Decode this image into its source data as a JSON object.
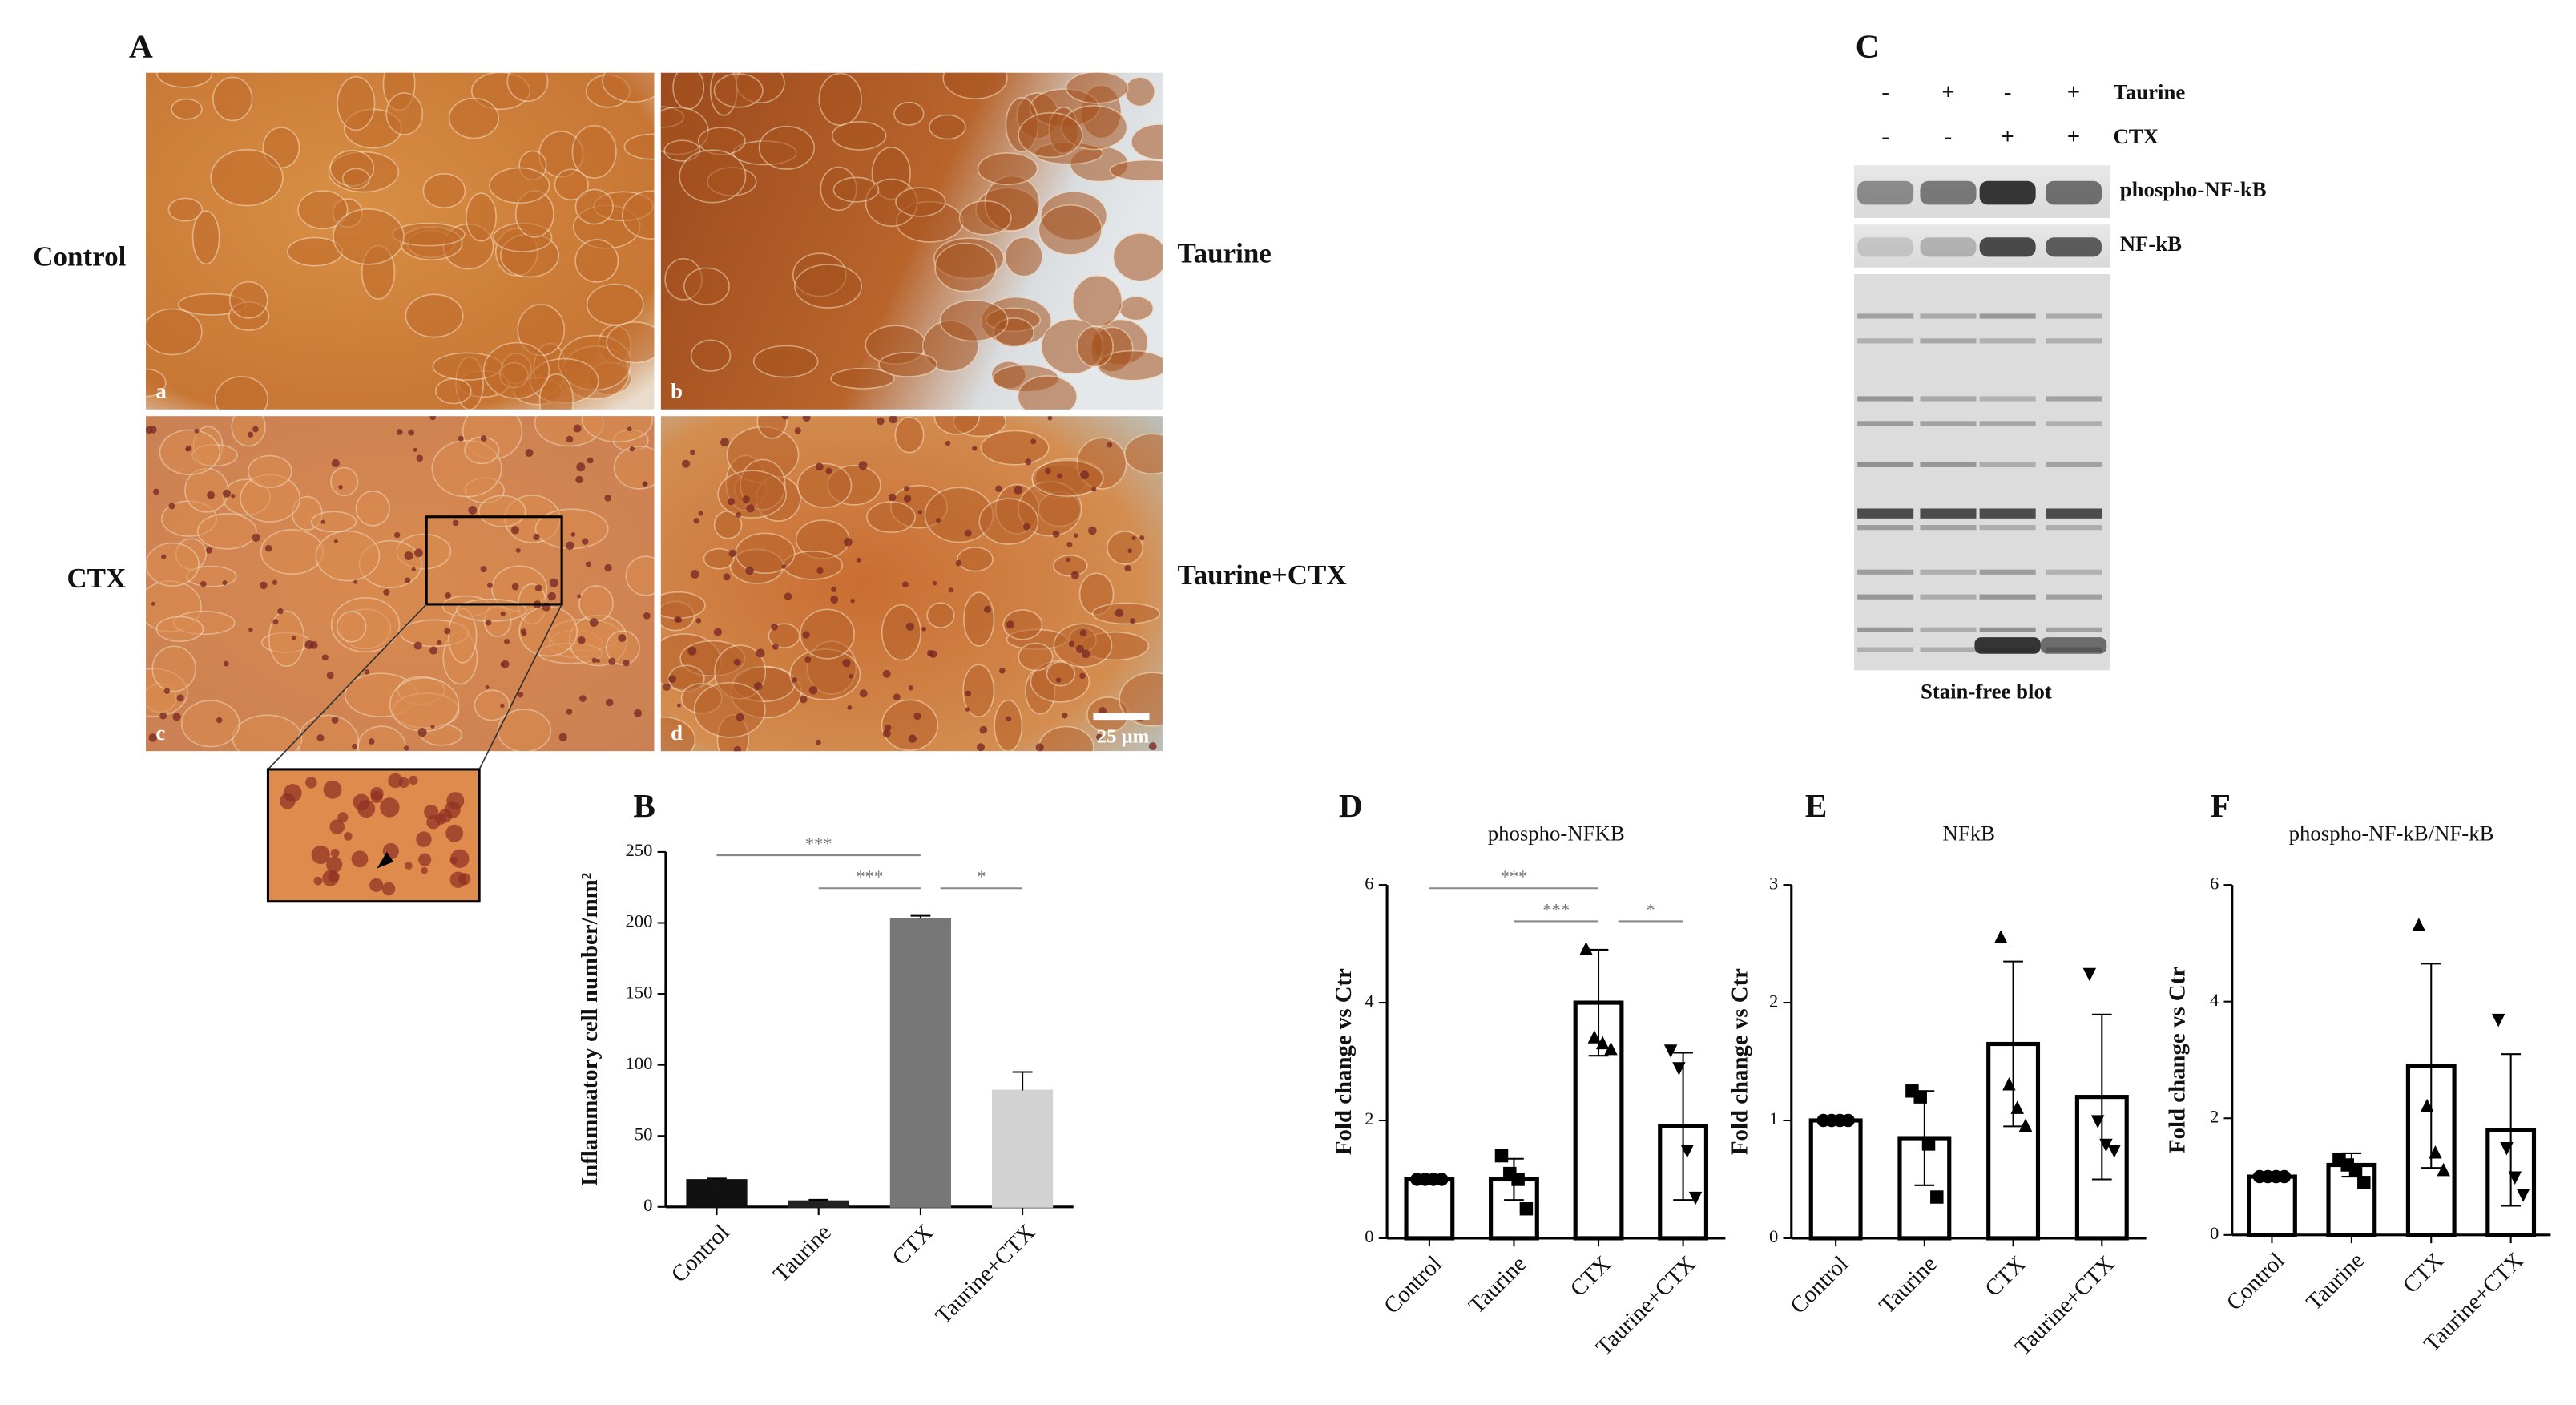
{
  "panel_a": {
    "letter": "A",
    "images": [
      {
        "label": "Control",
        "tag": "a"
      },
      {
        "label": "Taurine",
        "tag": "b"
      },
      {
        "label": "CTX",
        "tag": "c"
      },
      {
        "label": "Taurine+CTX",
        "tag": "d"
      }
    ],
    "scale_bar": "25 μm"
  },
  "panel_c": {
    "letter": "C",
    "rows": [
      {
        "name": "Taurine",
        "signs": [
          "-",
          "+",
          "-",
          "+"
        ]
      },
      {
        "name": "CTX",
        "signs": [
          "-",
          "-",
          "+",
          "+"
        ]
      }
    ],
    "blots": [
      "phospho-NF-kB",
      "NF-kB"
    ],
    "caption": "Stain-free blot"
  },
  "chart_data": [
    {
      "type": "bar",
      "panel": "B",
      "y_label": "Inflammatory cell number/mm²",
      "categories": [
        "Control",
        "Taurine",
        "CTX",
        "Taurine+CTX"
      ],
      "values": [
        19,
        4,
        203,
        82
      ],
      "errors": [
        1,
        1,
        2,
        13
      ],
      "colors": [
        "#111111",
        "#222222",
        "#777777",
        "#d3d3d3"
      ],
      "ylim": [
        0,
        250
      ],
      "yticks": [
        0,
        50,
        100,
        150,
        200,
        250
      ],
      "annotations": [
        {
          "label": "***",
          "groups": [
            "Control",
            "CTX"
          ]
        },
        {
          "label": "***",
          "groups": [
            "Taurine",
            "CTX"
          ]
        },
        {
          "label": "*",
          "groups": [
            "CTX",
            "Taurine+CTX"
          ]
        }
      ]
    },
    {
      "type": "bar",
      "panel": "D",
      "title": "phospho-NFKB",
      "y_label": "Fold change vs Ctr",
      "categories": [
        "Control",
        "Taurine",
        "CTX",
        "Taurine+CTX"
      ],
      "values": [
        1.0,
        1.0,
        4.0,
        1.9
      ],
      "errors": [
        0.05,
        0.35,
        0.9,
        1.25
      ],
      "points": [
        [
          1,
          1,
          1,
          1
        ],
        [
          1.4,
          1.1,
          1.0,
          0.5
        ],
        [
          4.9,
          3.4,
          3.3,
          3.2
        ],
        [
          3.2,
          2.9,
          1.5,
          0.7
        ]
      ],
      "markers": [
        "circle",
        "square",
        "triangle-up",
        "triangle-down"
      ],
      "color": "#ffffff",
      "edgecolor": "#000000",
      "ylim": [
        0,
        6
      ],
      "yticks": [
        0,
        2,
        4,
        6
      ],
      "annotations": [
        {
          "label": "***",
          "groups": [
            "Control",
            "CTX"
          ]
        },
        {
          "label": "***",
          "groups": [
            "Taurine",
            "CTX"
          ]
        },
        {
          "label": "*",
          "groups": [
            "CTX",
            "Taurine+CTX"
          ]
        }
      ]
    },
    {
      "type": "bar",
      "panel": "E",
      "title": "NFkB",
      "y_label": "Fold change vs Ctr",
      "categories": [
        "Control",
        "Taurine",
        "CTX",
        "Taurine+CTX"
      ],
      "values": [
        1.0,
        0.85,
        1.65,
        1.2
      ],
      "errors": [
        0.02,
        0.4,
        0.7,
        0.7
      ],
      "points": [
        [
          1,
          1,
          1,
          1
        ],
        [
          1.25,
          1.2,
          0.8,
          0.35
        ],
        [
          2.55,
          1.3,
          1.1,
          0.95
        ],
        [
          2.25,
          1.0,
          0.8,
          0.75
        ]
      ],
      "markers": [
        "circle",
        "square",
        "triangle-up",
        "triangle-down"
      ],
      "color": "#ffffff",
      "edgecolor": "#000000",
      "ylim": [
        0,
        3
      ],
      "yticks": [
        0,
        1,
        2,
        3
      ]
    },
    {
      "type": "bar",
      "panel": "F",
      "title": "phospho-NF-kB/NF-kB",
      "y_label": "Fold change vs Ctr",
      "categories": [
        "Control",
        "Taurine",
        "CTX",
        "Taurine+CTX"
      ],
      "values": [
        1.0,
        1.2,
        2.9,
        1.8
      ],
      "errors": [
        0.02,
        0.2,
        1.75,
        1.3
      ],
      "points": [
        [
          1,
          1,
          1,
          1
        ],
        [
          1.3,
          1.2,
          1.1,
          0.9
        ],
        [
          5.3,
          2.2,
          1.4,
          1.1
        ],
        [
          3.7,
          1.5,
          1.0,
          0.7
        ]
      ],
      "markers": [
        "circle",
        "square",
        "triangle-up",
        "triangle-down"
      ],
      "color": "#ffffff",
      "edgecolor": "#000000",
      "ylim": [
        0,
        6
      ],
      "yticks": [
        0,
        2,
        4,
        6
      ]
    }
  ]
}
